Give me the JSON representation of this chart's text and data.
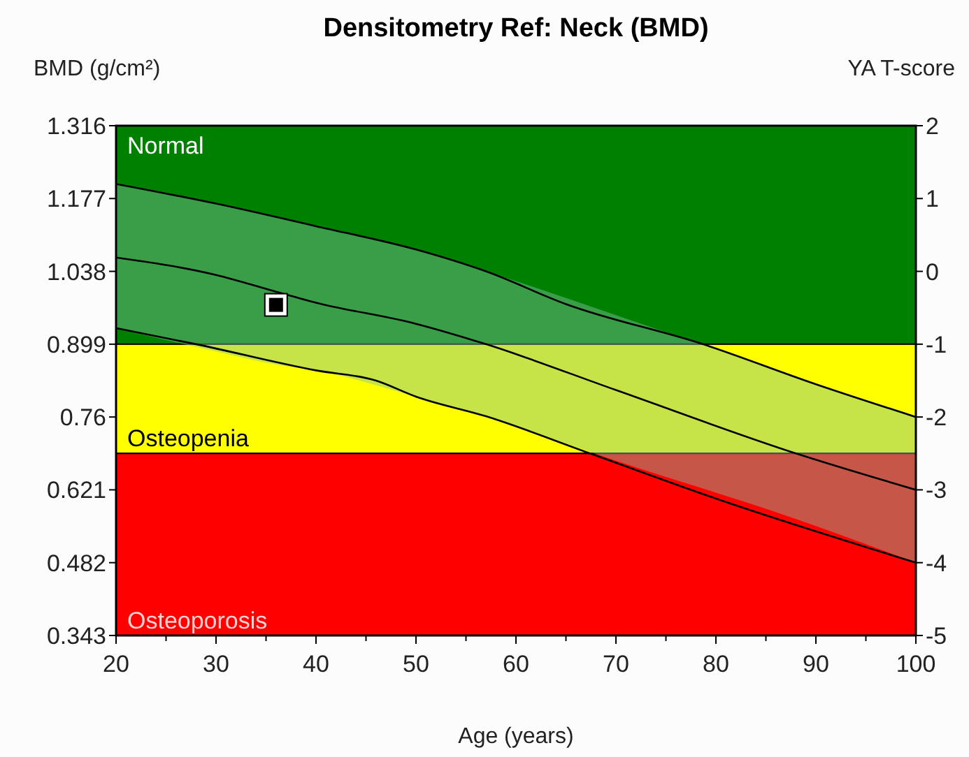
{
  "chart_data": {
    "type": "line",
    "title": "Densitometry Ref: Neck (BMD)",
    "xlabel": "Age (years)",
    "ylabel": "BMD (g/cm²)",
    "y2label": "YA T-score",
    "xlim": [
      20,
      100
    ],
    "xticks": [
      20,
      {
        "value": 25,
        "label": null
      },
      30,
      {
        "value": 35,
        "label": null
      },
      40,
      {
        "value": 45,
        "label": null
      },
      50,
      {
        "value": 55,
        "label": null
      },
      60,
      {
        "value": 65,
        "label": null
      },
      70,
      {
        "value": 75,
        "label": null
      },
      80,
      {
        "value": 85,
        "label": null
      },
      90,
      {
        "value": 95,
        "label": null
      },
      100
    ],
    "ylim": [
      0.343,
      1.316
    ],
    "yticks": [
      0.343,
      0.482,
      0.621,
      0.76,
      0.899,
      1.038,
      1.177,
      1.316
    ],
    "y2lim": [
      -5,
      2
    ],
    "y2ticks": [
      -5,
      -4,
      -3,
      -2,
      -1,
      0,
      1,
      2
    ],
    "bands": [
      {
        "axis": "y2",
        "from": -1,
        "to": 2,
        "label": "Normal",
        "color": "#008000"
      },
      {
        "axis": "y2",
        "from": -2.5,
        "to": -1,
        "label": "Osteopenia",
        "color": "#ffff00"
      },
      {
        "axis": "y2",
        "from": -5,
        "to": -2.5,
        "label": "Osteoporosis",
        "color": "#ff0000"
      }
    ],
    "series": [
      {
        "axis": "y2",
        "color": "#000000",
        "x": [
          20,
          30,
          40,
          50,
          57,
          65,
          78.7,
          90,
          100
        ],
        "values": [
          1.2,
          0.93,
          0.62,
          0.3,
          0.0,
          -0.45,
          -1.0,
          -1.55,
          -2.0
        ]
      },
      {
        "axis": "y2",
        "color": "#000000",
        "x": [
          20,
          30,
          36,
          40,
          50,
          57,
          70,
          88,
          100
        ],
        "values": [
          0.19,
          -0.05,
          -0.28,
          -0.43,
          -0.72,
          -1.0,
          -1.63,
          -2.5,
          -3.0
        ],
        "lower": [
          -0.78,
          -1.1,
          -1.28,
          -1.36,
          -1.72,
          -1.99,
          -2.6,
          -3.4,
          -4.0
        ],
        "upper": [
          1.2,
          0.93,
          0.75,
          0.62,
          0.3,
          0.0,
          -0.6,
          -1.45,
          -2.0
        ]
      },
      {
        "axis": "y2",
        "color": "#000000",
        "x": [
          20,
          28,
          40,
          46,
          50,
          57,
          67.4,
          80,
          100
        ],
        "values": [
          -0.78,
          -1.0,
          -1.36,
          -1.5,
          -1.72,
          -1.99,
          -2.5,
          -3.12,
          -4.0
        ]
      },
      {
        "type": "scatter",
        "axis": "y",
        "color": "#000000",
        "marker": "square",
        "x": [
          36
        ],
        "values": [
          0.974
        ]
      }
    ],
    "grid": false
  }
}
